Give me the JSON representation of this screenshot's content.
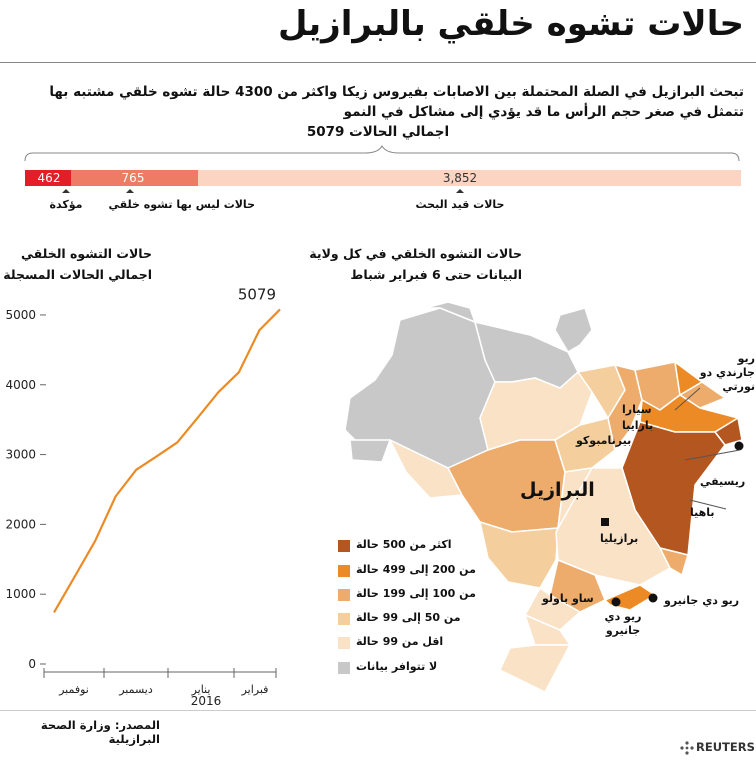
{
  "title": "حالات تشوه خلقي بالبرازيل",
  "subtitle": "تبحث البرازيل في الصلة المحتملة بين الاصابات بفيروس زيكا واكثر من 4300 حالة تشوه خلقي مشتبه بها تتمثل في صغر حجم الرأس ما قد يؤدي إلى مشاكل في النمو",
  "breakdown": {
    "total_label": "اجمالي الحالات 5079",
    "segments": [
      {
        "label": "مؤكدة",
        "value": 462,
        "value_text": "462",
        "color": "#e31e26"
      },
      {
        "label": "حالات ليس بها تشوه خلقي",
        "value": 765,
        "value_text": "765",
        "color": "#ee7b63"
      },
      {
        "label": "حالات قيد البحث",
        "value": 3852,
        "value_text": "3,852",
        "color": "#fbd4c2"
      }
    ]
  },
  "line_block": {
    "title_line1": "حالات التشوه الخلقي",
    "title_line2": "اجمالي الحالات المسجلة",
    "end_label": "5079",
    "year_label": "2016"
  },
  "chart_data": {
    "type": "line",
    "title": "حالات التشوه الخلقي",
    "subtitle": "اجمالي الحالات المسجلة",
    "x_tick_labels": [
      "نوفمبر",
      "ديسمبر",
      "يناير",
      "فبراير"
    ],
    "y_ticks": [
      0,
      1000,
      2000,
      3000,
      4000,
      5000
    ],
    "ylim": [
      0,
      5300
    ],
    "series": [
      {
        "color": "#ec8a25",
        "values": [
          739,
          1248,
          1761,
          2401,
          2782,
          2975,
          3174,
          3530,
          3893,
          4180,
          4783,
          5079
        ]
      }
    ],
    "annotation": "5079"
  },
  "map_block": {
    "title_line1": "حالات التشوه الخلقي في كل ولاية",
    "title_line2": "البيانات حتى 6 فبراير شباط",
    "country": "البرازيل",
    "capital": "برازيليا",
    "state_labels": [
      "ريو جارندي دو نورتي",
      "سيارا",
      "بارايبا",
      "بيرنامبوكو",
      "ريسيفي",
      "باهيا",
      "ساو باولو",
      "ريو دي جانيرو",
      "ريو دي جانيرو"
    ],
    "legend": [
      {
        "label": "اكثر من 500 حالة",
        "color": "#b4561f"
      },
      {
        "label": "من 200 إلى 499 حالة",
        "color": "#ec8a25"
      },
      {
        "label": "من 100 إلى 199 حالة",
        "color": "#eeac6c"
      },
      {
        "label": "من 50 إلى 99 حالة",
        "color": "#f4cf9d"
      },
      {
        "label": "اقل من 99 حالة",
        "color": "#fae2c6"
      },
      {
        "label": "لا تتوافر بيانات",
        "color": "#c8c8c8"
      }
    ]
  },
  "source": "المصدر: وزارة الصحة البرازيلية",
  "brand": "REUTERS"
}
